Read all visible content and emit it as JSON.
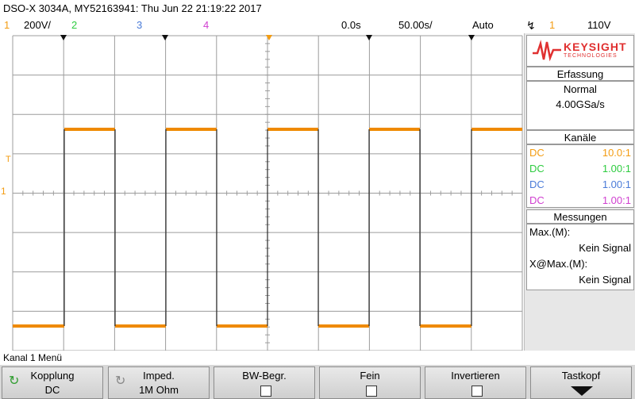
{
  "title": "DSO-X 3034A, MY52163941: Thu Jun 22 21:19:22 2017",
  "status": {
    "ch1_num": "1",
    "ch1_scale": "200V/",
    "ch2_num": "2",
    "ch3_num": "3",
    "ch4_num": "4",
    "time_pos": "0.0s",
    "time_scale": "50.00s/",
    "trigger_mode": "Auto",
    "trigger_icon": "rising-edge-icon",
    "trigger_src": "1",
    "trigger_level": "110V"
  },
  "colors": {
    "ch1": "#f39c12",
    "ch2": "#2ecc40",
    "ch3": "#4a7bd8",
    "ch4": "#d040d0",
    "trace": "#ef8a00"
  },
  "logo": {
    "brand": "KEYSIGHT",
    "sub": "TECHNOLOGIES"
  },
  "side": {
    "acq_header": "Erfassung",
    "acq_mode": "Normal",
    "acq_rate": "4.00GSa/s",
    "channels_header": "Kanäle",
    "channels": [
      {
        "coupling": "DC",
        "probe": "10.0:1"
      },
      {
        "coupling": "DC",
        "probe": "1.00:1"
      },
      {
        "coupling": "DC",
        "probe": "1.00:1"
      },
      {
        "coupling": "DC",
        "probe": "1.00:1"
      }
    ],
    "meas_header": "Messungen",
    "meas1_label": "Max.(M):",
    "meas1_value": "Kein Signal",
    "meas2_label": "X@Max.(M):",
    "meas2_value": "Kein Signal"
  },
  "menu_label": "Kanal 1 Menü",
  "softkeys": {
    "k1_l1": "Kopplung",
    "k1_l2": "DC",
    "k2_l1": "Imped.",
    "k2_l2": "1M Ohm",
    "k3_l1": "BW-Begr.",
    "k4_l1": "Fein",
    "k5_l1": "Invertieren",
    "k6_l1": "Tastkopf"
  },
  "markers": {
    "trigger_level": "T",
    "ch1_ground": "1"
  }
}
